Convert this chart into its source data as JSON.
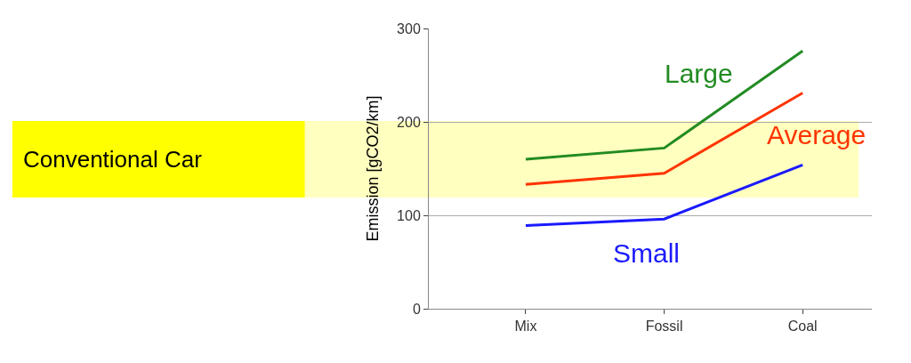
{
  "chart_data": {
    "type": "line",
    "ylabel": "Emission [gCO2/km]",
    "categories": [
      "Mix",
      "Fossil",
      "Coal"
    ],
    "series": [
      {
        "name": "Large",
        "color": "#228b22",
        "values": [
          160,
          172,
          276
        ]
      },
      {
        "name": "Average",
        "color": "#ff3300",
        "values": [
          133,
          145,
          231
        ]
      },
      {
        "name": "Small",
        "color": "#1a1aff",
        "values": [
          89,
          96,
          154
        ]
      }
    ],
    "ylim": [
      0,
      300
    ],
    "yticks": [
      0,
      100,
      200,
      300
    ],
    "grid": "y",
    "legend": false,
    "marker": "none",
    "line_style": "solid",
    "bands": [
      {
        "axis": "y",
        "from": 119,
        "to": 201,
        "label": "Conventional Car",
        "color": "#ffff00"
      }
    ]
  }
}
